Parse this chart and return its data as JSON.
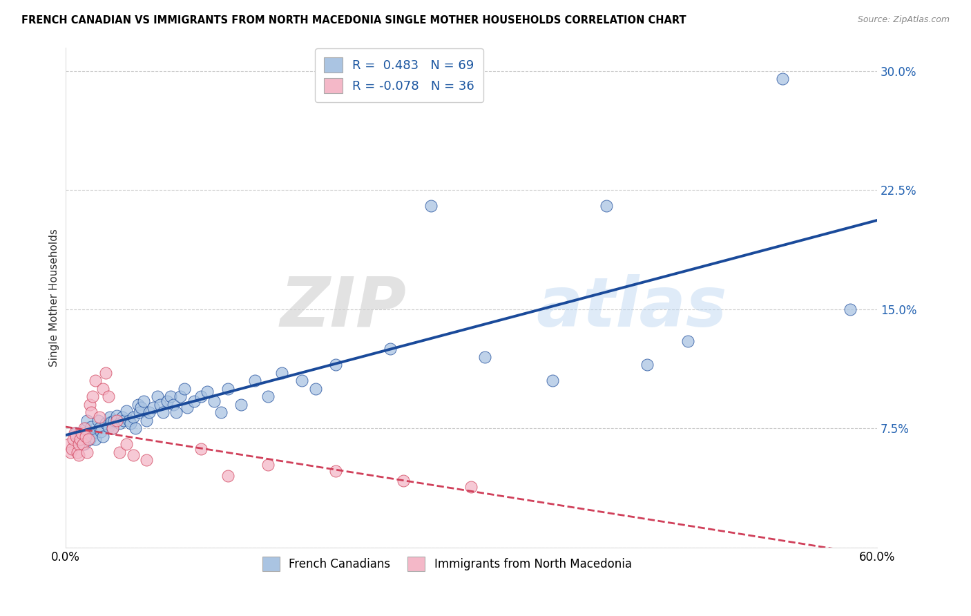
{
  "title": "FRENCH CANADIAN VS IMMIGRANTS FROM NORTH MACEDONIA SINGLE MOTHER HOUSEHOLDS CORRELATION CHART",
  "source": "Source: ZipAtlas.com",
  "ylabel": "Single Mother Households",
  "xlim": [
    0.0,
    0.6
  ],
  "ylim": [
    0.0,
    0.315
  ],
  "yticks": [
    0.0,
    0.075,
    0.15,
    0.225,
    0.3
  ],
  "xticks": [
    0.0,
    0.1,
    0.2,
    0.3,
    0.4,
    0.5,
    0.6
  ],
  "blue_color": "#aac4e2",
  "blue_line_color": "#1a4a9a",
  "pink_color": "#f4b8c8",
  "pink_line_color": "#d0405a",
  "R_blue": 0.483,
  "N_blue": 69,
  "R_pink": -0.078,
  "N_pink": 36,
  "legend_label_blue": "French Canadians",
  "legend_label_pink": "Immigrants from North Macedonia",
  "watermark_zip": "ZIP",
  "watermark_atlas": "atlas",
  "blue_scatter_x": [
    0.008,
    0.01,
    0.012,
    0.014,
    0.015,
    0.016,
    0.017,
    0.018,
    0.019,
    0.02,
    0.022,
    0.024,
    0.025,
    0.026,
    0.028,
    0.03,
    0.032,
    0.033,
    0.034,
    0.035,
    0.036,
    0.038,
    0.04,
    0.042,
    0.043,
    0.045,
    0.047,
    0.048,
    0.05,
    0.052,
    0.054,
    0.055,
    0.056,
    0.058,
    0.06,
    0.062,
    0.065,
    0.068,
    0.07,
    0.072,
    0.075,
    0.078,
    0.08,
    0.082,
    0.085,
    0.088,
    0.09,
    0.095,
    0.1,
    0.105,
    0.11,
    0.115,
    0.12,
    0.13,
    0.14,
    0.15,
    0.16,
    0.175,
    0.185,
    0.2,
    0.24,
    0.27,
    0.31,
    0.36,
    0.4,
    0.43,
    0.46,
    0.53,
    0.58
  ],
  "blue_scatter_y": [
    0.072,
    0.068,
    0.07,
    0.065,
    0.075,
    0.08,
    0.073,
    0.068,
    0.076,
    0.072,
    0.068,
    0.08,
    0.075,
    0.073,
    0.07,
    0.078,
    0.076,
    0.082,
    0.079,
    0.075,
    0.08,
    0.083,
    0.078,
    0.082,
    0.08,
    0.086,
    0.08,
    0.078,
    0.082,
    0.075,
    0.09,
    0.085,
    0.088,
    0.092,
    0.08,
    0.085,
    0.088,
    0.095,
    0.09,
    0.085,
    0.092,
    0.095,
    0.09,
    0.085,
    0.095,
    0.1,
    0.088,
    0.092,
    0.095,
    0.098,
    0.092,
    0.085,
    0.1,
    0.09,
    0.105,
    0.095,
    0.11,
    0.105,
    0.1,
    0.115,
    0.125,
    0.215,
    0.12,
    0.105,
    0.215,
    0.115,
    0.13,
    0.295,
    0.15
  ],
  "pink_scatter_x": [
    0.003,
    0.004,
    0.005,
    0.006,
    0.007,
    0.008,
    0.009,
    0.01,
    0.01,
    0.011,
    0.012,
    0.013,
    0.014,
    0.015,
    0.016,
    0.017,
    0.018,
    0.019,
    0.02,
    0.022,
    0.025,
    0.028,
    0.03,
    0.032,
    0.035,
    0.038,
    0.04,
    0.045,
    0.05,
    0.06,
    0.1,
    0.12,
    0.15,
    0.2,
    0.25,
    0.3
  ],
  "pink_scatter_y": [
    0.065,
    0.06,
    0.062,
    0.068,
    0.072,
    0.07,
    0.06,
    0.065,
    0.058,
    0.068,
    0.072,
    0.065,
    0.075,
    0.07,
    0.06,
    0.068,
    0.09,
    0.085,
    0.095,
    0.105,
    0.082,
    0.1,
    0.11,
    0.095,
    0.075,
    0.08,
    0.06,
    0.065,
    0.058,
    0.055,
    0.062,
    0.045,
    0.052,
    0.048,
    0.042,
    0.038
  ]
}
